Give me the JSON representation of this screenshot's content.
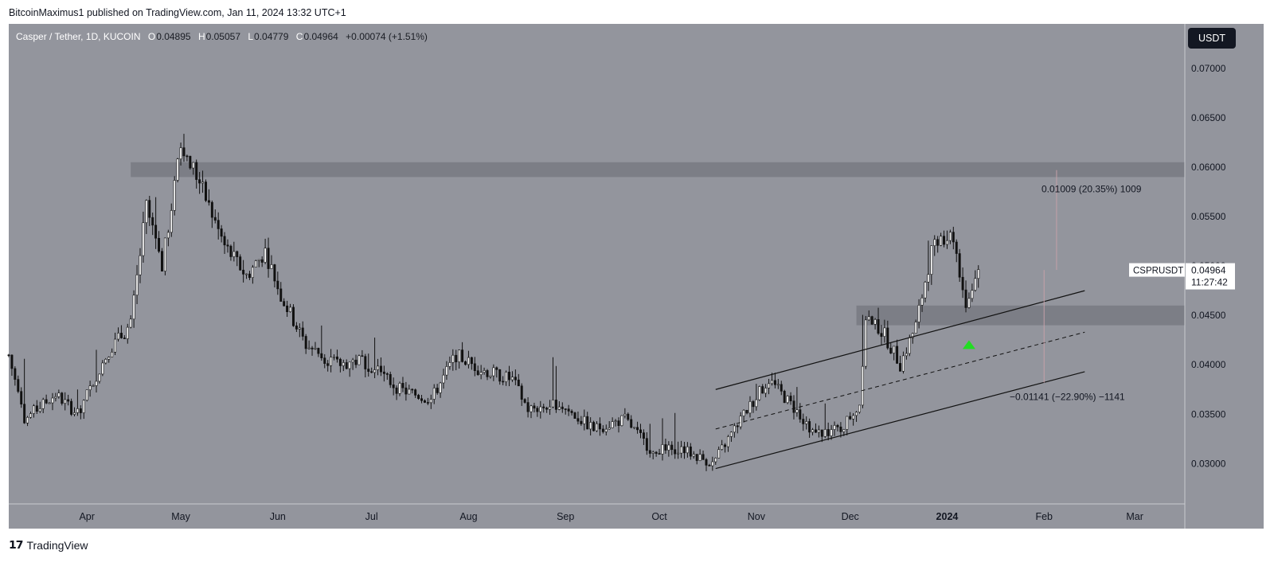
{
  "header": {
    "publisher": "BitcoinMaximus1 published on TradingView.com, Jan 11, 2024 13:32 UTC+1"
  },
  "legend": {
    "symbol": "Casper / Tether, 1D, KUCOIN",
    "open_label": "O",
    "open": "0.04895",
    "high_label": "H",
    "high": "0.05057",
    "low_label": "L",
    "low": "0.04779",
    "close_label": "C",
    "close": "0.04964",
    "change": "+0.00074 (+1.51%)"
  },
  "toolbar": {
    "currency": "USDT"
  },
  "price_tag": {
    "symbol": "CSPRUSDT",
    "price": "0.04964",
    "countdown": "11:27:42"
  },
  "measures": {
    "up": "0.01009 (20.35%) 1009",
    "down": "−0.01141 (−22.90%) −1141"
  },
  "footer": {
    "brand": "TradingView"
  },
  "colors": {
    "background": "#93959d",
    "candle": "#ffffff",
    "candle_wick": "#111111",
    "zone": "#7c7e86",
    "channel": "#111111",
    "arrow": "#22dd22",
    "price_tag_bg": "#ffffff"
  },
  "chart_data": {
    "type": "candlestick",
    "symbol": "CSPR/USDT",
    "interval": "1D",
    "exchange": "KUCOIN",
    "y_ticks": [
      "0.03000",
      "0.03500",
      "0.04000",
      "0.04500",
      "0.05000",
      "0.05500",
      "0.06000",
      "0.06500",
      "0.07000"
    ],
    "y_range": [
      0.026,
      0.0745
    ],
    "x_ticks": [
      "Apr",
      "May",
      "Jun",
      "Jul",
      "Aug",
      "Sep",
      "Oct",
      "Nov",
      "Dec",
      "2024",
      "Feb",
      "Mar"
    ],
    "x_range": [
      "2023-03-07",
      "2024-03-17"
    ],
    "key_points": [
      {
        "date": "2023-03-07",
        "price": 0.041
      },
      {
        "date": "2023-03-12",
        "price": 0.0345
      },
      {
        "date": "2023-03-22",
        "price": 0.037
      },
      {
        "date": "2023-03-29",
        "price": 0.035
      },
      {
        "date": "2023-04-08",
        "price": 0.0415
      },
      {
        "date": "2023-04-15",
        "price": 0.044
      },
      {
        "date": "2023-04-20",
        "price": 0.056
      },
      {
        "date": "2023-04-25",
        "price": 0.05
      },
      {
        "date": "2023-05-01",
        "price": 0.062
      },
      {
        "date": "2023-05-05",
        "price": 0.06
      },
      {
        "date": "2023-05-10",
        "price": 0.056
      },
      {
        "date": "2023-05-15",
        "price": 0.052
      },
      {
        "date": "2023-05-22",
        "price": 0.049
      },
      {
        "date": "2023-05-28",
        "price": 0.0515
      },
      {
        "date": "2023-06-02",
        "price": 0.047
      },
      {
        "date": "2023-06-10",
        "price": 0.042
      },
      {
        "date": "2023-06-20",
        "price": 0.04
      },
      {
        "date": "2023-06-28",
        "price": 0.0405
      },
      {
        "date": "2023-07-10",
        "price": 0.0375
      },
      {
        "date": "2023-07-20",
        "price": 0.0365
      },
      {
        "date": "2023-07-28",
        "price": 0.041
      },
      {
        "date": "2023-08-05",
        "price": 0.0395
      },
      {
        "date": "2023-08-15",
        "price": 0.0385
      },
      {
        "date": "2023-08-20",
        "price": 0.0355
      },
      {
        "date": "2023-08-30",
        "price": 0.036
      },
      {
        "date": "2023-09-10",
        "price": 0.0335
      },
      {
        "date": "2023-09-20",
        "price": 0.0345
      },
      {
        "date": "2023-09-28",
        "price": 0.0315
      },
      {
        "date": "2023-10-08",
        "price": 0.0315
      },
      {
        "date": "2023-10-18",
        "price": 0.03
      },
      {
        "date": "2023-10-28",
        "price": 0.035
      },
      {
        "date": "2023-11-05",
        "price": 0.0385
      },
      {
        "date": "2023-11-12",
        "price": 0.036
      },
      {
        "date": "2023-11-20",
        "price": 0.033
      },
      {
        "date": "2023-11-28",
        "price": 0.0335
      },
      {
        "date": "2023-12-04",
        "price": 0.036
      },
      {
        "date": "2023-12-06",
        "price": 0.045
      },
      {
        "date": "2023-12-12",
        "price": 0.043
      },
      {
        "date": "2023-12-17",
        "price": 0.04
      },
      {
        "date": "2023-12-22",
        "price": 0.044
      },
      {
        "date": "2023-12-28",
        "price": 0.053
      },
      {
        "date": "2024-01-03",
        "price": 0.053
      },
      {
        "date": "2024-01-07",
        "price": 0.046
      },
      {
        "date": "2024-01-11",
        "price": 0.0496
      }
    ],
    "annotations": {
      "resistance_zone": [
        0.059,
        0.0605
      ],
      "support_zone": [
        0.044,
        0.046
      ],
      "channel": {
        "start": "2023-10-19",
        "end": "2024-02-14",
        "upper": [
          0.0375,
          0.0475
        ],
        "middle": [
          0.0335,
          0.0433
        ],
        "lower": [
          0.0295,
          0.0393
        ]
      },
      "measure_up": {
        "from": 0.0496,
        "to": 0.0597,
        "label": "0.01009 (20.35%) 1009"
      },
      "measure_down": {
        "from": 0.0496,
        "to": 0.0382,
        "label": "-0.01141 (-22.90%) -1141"
      },
      "current_price": 0.04964
    }
  }
}
